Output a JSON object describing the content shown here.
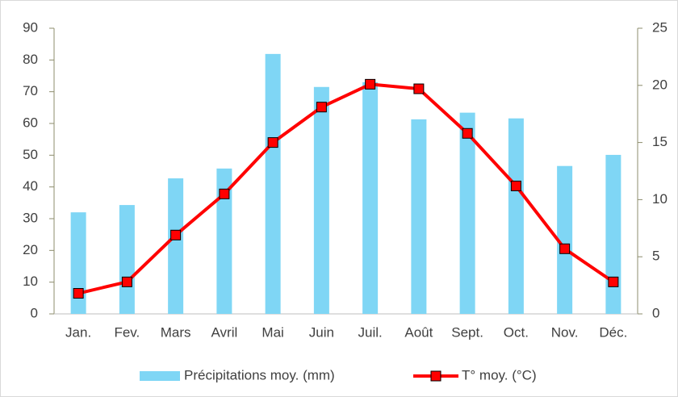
{
  "chart_data": {
    "type": "bar_line",
    "categories": [
      "Jan.",
      "Fev.",
      "Mars",
      "Avril",
      "Mai",
      "Juin",
      "Juil.",
      "Août",
      "Sept.",
      "Oct.",
      "Nov.",
      "Déc."
    ],
    "series": [
      {
        "name": "Précipitations moy. (mm)",
        "color": "#7fd6f5",
        "type": "bar",
        "values": [
          32,
          34.3,
          42.7,
          45.8,
          81.9,
          71.5,
          73,
          61.3,
          63.4,
          61.6,
          46.6,
          50.1
        ]
      },
      {
        "name": "T° moy. (°C)",
        "color": "#ff0000",
        "type": "line",
        "axis": "y2",
        "values": [
          1.8,
          2.8,
          6.9,
          10.5,
          15.0,
          18.1,
          20.1,
          19.7,
          15.8,
          11.2,
          5.7,
          2.8
        ]
      }
    ],
    "ylim": [
      0,
      90
    ],
    "yticks": [
      0,
      10,
      20,
      30,
      40,
      50,
      60,
      70,
      80,
      90
    ],
    "y2lim": [
      0,
      25
    ],
    "y2ticks": [
      0,
      5,
      10,
      15,
      20,
      25
    ],
    "legend": "bottom"
  }
}
